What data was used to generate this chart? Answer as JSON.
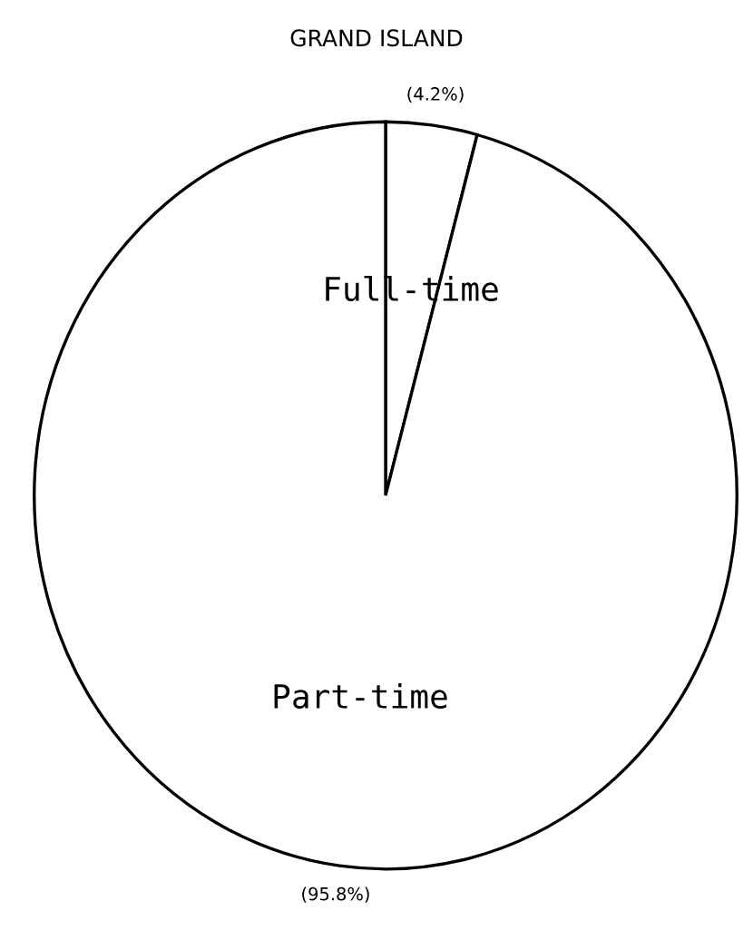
{
  "chart_data": {
    "type": "pie",
    "title": "GRAND ISLAND",
    "categories": [
      "Full-time",
      "Part-time"
    ],
    "values": [
      4.2,
      95.8
    ],
    "colors": [
      "#ffffff",
      "#ffffff"
    ],
    "value_labels": [
      "(4.2%)",
      "(95.8%)"
    ]
  }
}
